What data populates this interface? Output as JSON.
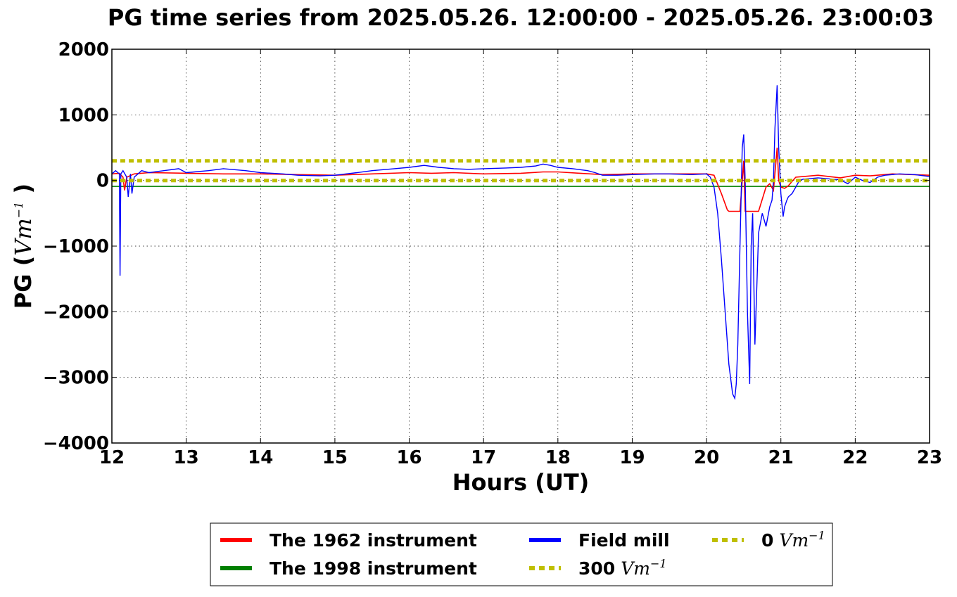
{
  "chart_data": {
    "type": "line",
    "title": "PG time series from 2025.05.26. 12:00:00 - 2025.05.26. 23:00:03",
    "xlabel": "Hours (UT)",
    "ylabel": {
      "prefix": "PG (",
      "math": "Vm",
      "sup": "−1",
      "suffix": " )"
    },
    "xlim": [
      12,
      23
    ],
    "ylim": [
      -4000,
      2000
    ],
    "xticks": [
      12,
      13,
      14,
      15,
      16,
      17,
      18,
      19,
      20,
      21,
      22,
      23
    ],
    "yticks": [
      2000,
      1000,
      0,
      -1000,
      -2000,
      -3000,
      -4000
    ],
    "ytick_labels": [
      "2000",
      "1000",
      "0",
      "−1000",
      "−2000",
      "−3000",
      "−4000"
    ],
    "grid": true,
    "legend_position": "bottom",
    "series": [
      {
        "name": "The 1962 instrument",
        "color": "#ff0000",
        "style": "solid",
        "x": [
          12.0,
          12.1,
          12.15,
          12.17,
          12.2,
          12.3,
          12.5,
          13.0,
          13.5,
          14.0,
          14.5,
          15.0,
          15.5,
          16.0,
          16.3,
          16.6,
          17.0,
          17.5,
          17.8,
          18.0,
          18.3,
          18.6,
          19.0,
          19.5,
          20.0,
          20.1,
          20.2,
          20.28,
          20.3,
          20.45,
          20.5,
          20.52,
          20.55,
          20.6,
          20.7,
          20.8,
          20.85,
          20.9,
          20.95,
          20.97,
          21.0,
          21.05,
          21.1,
          21.2,
          21.5,
          21.8,
          22.0,
          22.2,
          22.5,
          23.0
        ],
        "y": [
          100,
          110,
          50,
          -150,
          50,
          100,
          120,
          110,
          100,
          100,
          90,
          80,
          100,
          120,
          110,
          120,
          100,
          110,
          130,
          130,
          110,
          90,
          100,
          100,
          100,
          80,
          -200,
          -450,
          -470,
          -470,
          300,
          -470,
          -470,
          -470,
          -470,
          -100,
          -50,
          -150,
          500,
          0,
          -100,
          -120,
          -80,
          50,
          80,
          40,
          80,
          70,
          100,
          80
        ]
      },
      {
        "name": "The 1998 instrument",
        "color": "#008000",
        "style": "solid",
        "x": [
          12,
          23
        ],
        "y": [
          -90,
          -90
        ]
      },
      {
        "name": "Field mill",
        "color": "#0000ff",
        "style": "solid",
        "x": [
          12.0,
          12.05,
          12.08,
          12.1,
          12.11,
          12.12,
          12.15,
          12.2,
          12.22,
          12.25,
          12.27,
          12.3,
          12.4,
          12.5,
          12.7,
          12.9,
          13.0,
          13.3,
          13.5,
          13.8,
          14.0,
          14.3,
          14.5,
          14.8,
          15.0,
          15.3,
          15.5,
          15.8,
          16.0,
          16.2,
          16.4,
          16.6,
          16.8,
          17.0,
          17.3,
          17.5,
          17.7,
          17.8,
          17.9,
          18.0,
          18.2,
          18.4,
          18.5,
          18.6,
          18.8,
          19.0,
          19.3,
          19.5,
          19.8,
          20.0,
          20.05,
          20.1,
          20.15,
          20.2,
          20.25,
          20.3,
          20.35,
          20.38,
          20.4,
          20.42,
          20.45,
          20.48,
          20.5,
          20.52,
          20.55,
          20.58,
          20.6,
          20.62,
          20.65,
          20.68,
          20.7,
          20.75,
          20.8,
          20.85,
          20.88,
          20.9,
          20.92,
          20.95,
          20.97,
          21.0,
          21.03,
          21.05,
          21.08,
          21.1,
          21.15,
          21.2,
          21.25,
          21.3,
          21.4,
          21.5,
          21.6,
          21.7,
          21.8,
          21.9,
          22.0,
          22.1,
          22.2,
          22.3,
          22.4,
          22.6,
          22.8,
          23.0
        ],
        "y": [
          100,
          150,
          120,
          100,
          -1450,
          100,
          150,
          50,
          -250,
          100,
          -200,
          50,
          150,
          120,
          150,
          180,
          120,
          150,
          180,
          150,
          120,
          100,
          80,
          70,
          80,
          120,
          150,
          180,
          200,
          230,
          200,
          180,
          170,
          180,
          190,
          200,
          220,
          250,
          230,
          200,
          180,
          150,
          120,
          80,
          80,
          90,
          100,
          100,
          90,
          100,
          50,
          -100,
          -500,
          -1200,
          -2000,
          -2800,
          -3250,
          -3320,
          -3100,
          -2500,
          -1000,
          500,
          700,
          0,
          -2000,
          -3100,
          -1000,
          -500,
          -2500,
          -1500,
          -800,
          -500,
          -700,
          -400,
          -300,
          0,
          800,
          1450,
          500,
          -200,
          -550,
          -400,
          -300,
          -250,
          -200,
          -100,
          0,
          20,
          30,
          40,
          30,
          20,
          10,
          -50,
          50,
          0,
          -30,
          50,
          80,
          100,
          90,
          60
        ]
      },
      {
        "name": "300",
        "name_math": "Vm",
        "name_sup": "−1",
        "color": "#bfbf00",
        "style": "dotted",
        "x": [
          12,
          23
        ],
        "y": [
          300,
          300
        ]
      },
      {
        "name": "0",
        "name_math": "Vm",
        "name_sup": "−1",
        "color": "#bfbf00",
        "style": "dotted",
        "x": [
          12,
          23
        ],
        "y": [
          0,
          0
        ]
      }
    ]
  }
}
